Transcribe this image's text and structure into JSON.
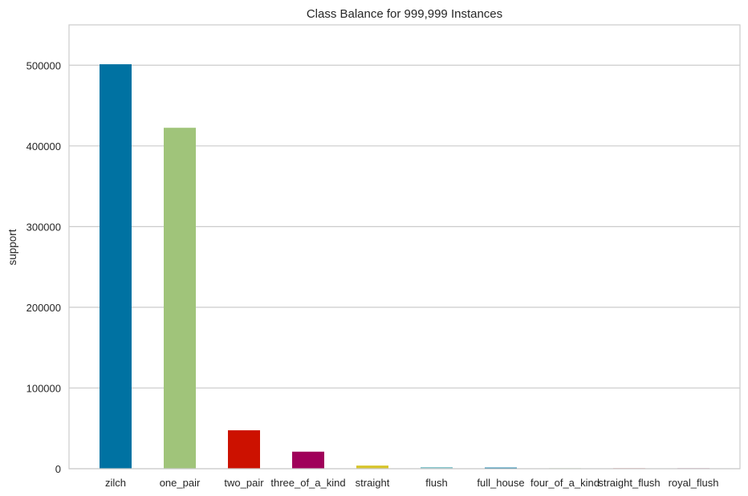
{
  "chart_data": {
    "type": "bar",
    "title": "Class Balance for 999,999 Instances",
    "xlabel": "",
    "ylabel": "support",
    "categories": [
      "zilch",
      "one_pair",
      "two_pair",
      "three_of_a_kind",
      "straight",
      "flush",
      "full_house",
      "four_of_a_kind",
      "straight_flush",
      "royal_flush"
    ],
    "values": [
      501209,
      422498,
      47622,
      21121,
      3885,
      1996,
      1424,
      230,
      12,
      2
    ],
    "colors": [
      "#0072a2",
      "#a0c47a",
      "#cc1100",
      "#a0005a",
      "#d7c42b",
      "#87c5cb",
      "#0072a2",
      "#a0c47a",
      "#cc1100",
      "#a0005a"
    ],
    "ylim": [
      0,
      550000
    ],
    "yticks": [
      "0",
      "100000",
      "200000",
      "300000",
      "400000",
      "500000"
    ],
    "ytick_values": [
      0,
      100000,
      200000,
      300000,
      400000,
      500000
    ],
    "grid": true,
    "legend": "none"
  }
}
